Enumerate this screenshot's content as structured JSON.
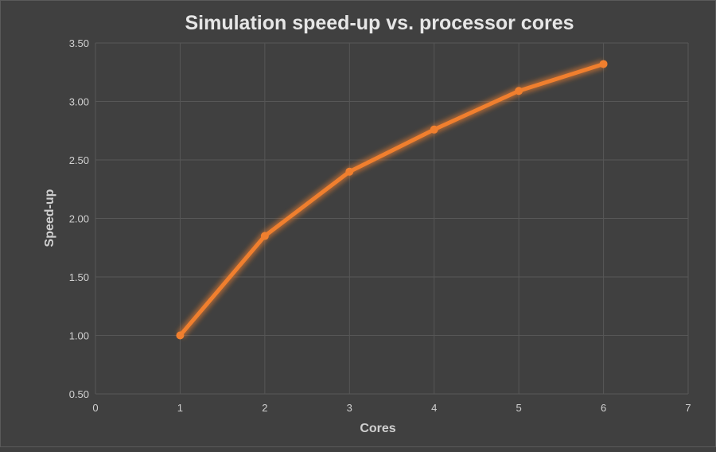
{
  "chart_data": {
    "type": "line",
    "title": "Simulation speed-up vs. processor cores",
    "xlabel": "Cores",
    "ylabel": "Speed-up",
    "xlim": [
      0,
      7
    ],
    "ylim": [
      0.5,
      3.5
    ],
    "xticks": [
      "0",
      "1",
      "2",
      "3",
      "4",
      "5",
      "6",
      "7"
    ],
    "yticks": [
      "0.50",
      "1.00",
      "1.50",
      "2.00",
      "2.50",
      "3.00",
      "3.50"
    ],
    "grid": true,
    "series": [
      {
        "x": [
          1,
          2,
          3,
          4,
          5,
          6
        ],
        "values": [
          1.0,
          1.85,
          2.4,
          2.76,
          3.09,
          3.32
        ],
        "color": "#f07f2e"
      }
    ],
    "background": "#404040"
  }
}
